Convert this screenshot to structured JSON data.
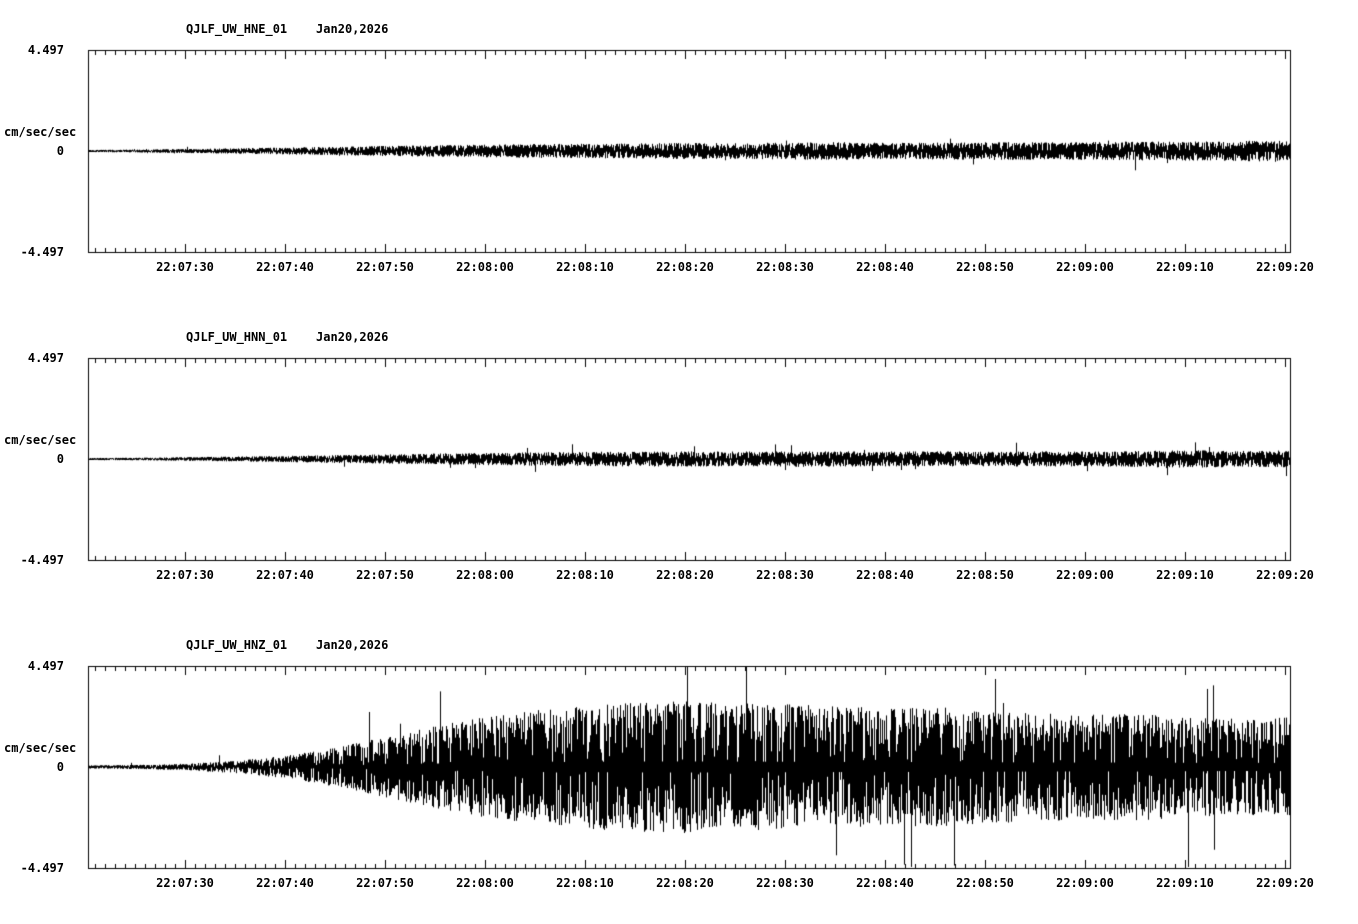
{
  "page": {
    "background": "#ffffff",
    "trace_color": "#000000"
  },
  "chart_data": [
    {
      "type": "line",
      "kind": "seismogram",
      "title": "QJLF_UW_HNE_01    Jan20,2026",
      "station": "QJLF_UW_HNE_01",
      "date": "Jan20,2026",
      "ylabel": "cm/sec/sec",
      "ylim": [
        -4.497,
        4.497
      ],
      "ytick_labels": [
        "4.497",
        "0",
        "-4.497"
      ],
      "xtick_labels": [
        "22:07:30",
        "22:07:40",
        "22:07:50",
        "22:08:00",
        "22:08:10",
        "22:08:20",
        "22:08:30",
        "22:08:40",
        "22:08:50",
        "22:09:00",
        "22:09:10",
        "22:09:20"
      ],
      "x_major_tick_seconds": 10,
      "x_minor_tick_seconds": 1,
      "legend": "none",
      "grid": "off",
      "envelope": [
        0.05,
        0.07,
        0.1,
        0.13,
        0.17,
        0.2,
        0.24,
        0.27,
        0.3,
        0.33,
        0.35,
        0.36,
        0.38,
        0.37,
        0.4,
        0.42,
        0.38,
        0.4,
        0.43,
        0.41,
        0.42,
        0.44,
        0.45,
        0.47,
        0.52
      ],
      "seed": 11
    },
    {
      "type": "line",
      "kind": "seismogram",
      "title": "QJLF_UW_HNN_01    Jan20,2026",
      "station": "QJLF_UW_HNN_01",
      "date": "Jan20,2026",
      "ylabel": "cm/sec/sec",
      "ylim": [
        -4.497,
        4.497
      ],
      "ytick_labels": [
        "4.497",
        "0",
        "-4.497"
      ],
      "xtick_labels": [
        "22:07:30",
        "22:07:40",
        "22:07:50",
        "22:08:00",
        "22:08:10",
        "22:08:20",
        "22:08:30",
        "22:08:40",
        "22:08:50",
        "22:09:00",
        "22:09:10",
        "22:09:20"
      ],
      "x_major_tick_seconds": 10,
      "x_minor_tick_seconds": 1,
      "legend": "none",
      "grid": "off",
      "envelope": [
        0.05,
        0.06,
        0.09,
        0.12,
        0.15,
        0.19,
        0.22,
        0.26,
        0.29,
        0.32,
        0.34,
        0.35,
        0.36,
        0.35,
        0.37,
        0.36,
        0.35,
        0.36,
        0.35,
        0.36,
        0.35,
        0.38,
        0.42,
        0.38,
        0.4
      ],
      "seed": 22
    },
    {
      "type": "line",
      "kind": "seismogram",
      "title": "QJLF_UW_HNZ_01    Jan20,2026",
      "station": "QJLF_UW_HNZ_01",
      "date": "Jan20,2026",
      "ylabel": "cm/sec/sec",
      "ylim": [
        -4.497,
        4.497
      ],
      "ytick_labels": [
        "4.497",
        "0",
        "-4.497"
      ],
      "xtick_labels": [
        "22:07:30",
        "22:07:40",
        "22:07:50",
        "22:08:00",
        "22:08:10",
        "22:08:20",
        "22:08:30",
        "22:08:40",
        "22:08:50",
        "22:09:00",
        "22:09:10",
        "22:09:20"
      ],
      "x_major_tick_seconds": 10,
      "x_minor_tick_seconds": 1,
      "legend": "none",
      "grid": "off",
      "envelope": [
        0.08,
        0.1,
        0.16,
        0.3,
        0.55,
        0.95,
        1.45,
        1.95,
        2.4,
        2.7,
        2.9,
        3.05,
        3.1,
        3.0,
        2.95,
        2.85,
        2.75,
        2.8,
        2.65,
        2.55,
        2.45,
        2.55,
        2.35,
        2.25,
        2.35
      ],
      "seed": 33
    }
  ]
}
